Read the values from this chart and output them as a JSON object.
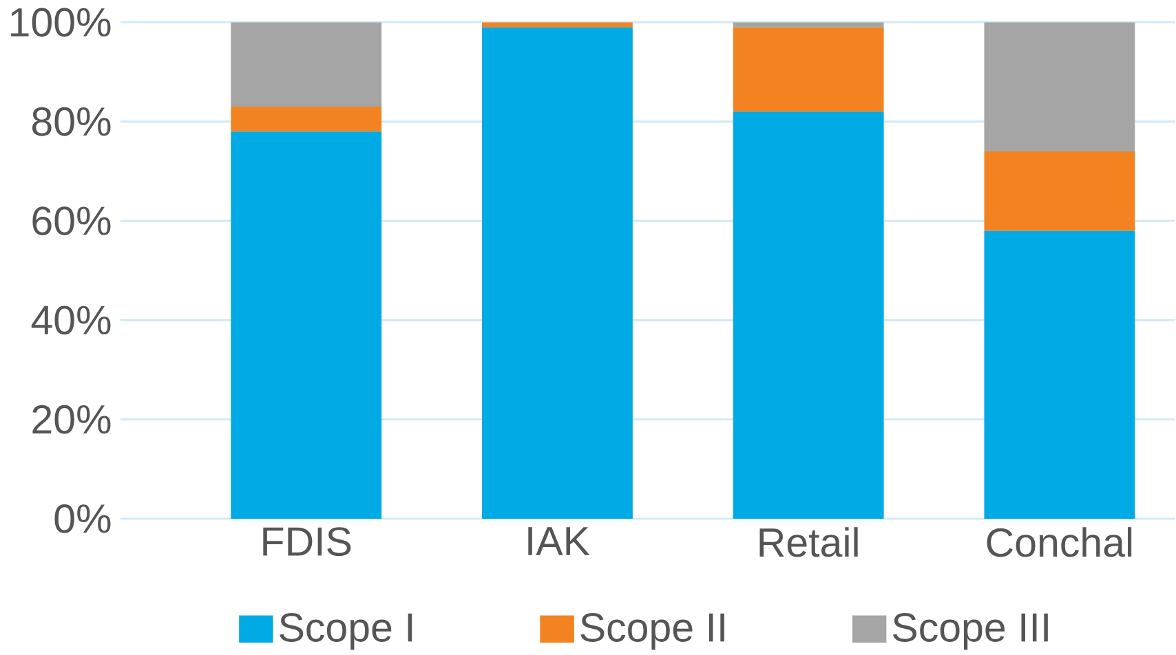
{
  "chart_data": {
    "type": "bar",
    "stacked": true,
    "categories": [
      "FDIS",
      "IAK",
      "Retail",
      "Conchal"
    ],
    "series": [
      {
        "name": "Scope I",
        "color": "#00abe5",
        "values": [
          78,
          99,
          82,
          58
        ]
      },
      {
        "name": "Scope II",
        "color": "#f38321",
        "values": [
          5,
          1,
          17,
          16
        ]
      },
      {
        "name": "Scope III",
        "color": "#a5a5a5",
        "values": [
          17,
          0,
          1,
          26
        ]
      }
    ],
    "ylim": [
      0,
      100
    ],
    "yticks": [
      {
        "value": 0,
        "label": "0%"
      },
      {
        "value": 20,
        "label": "20%"
      },
      {
        "value": 40,
        "label": "40%"
      },
      {
        "value": 60,
        "label": "60%"
      },
      {
        "value": 80,
        "label": "80%"
      },
      {
        "value": 100,
        "label": "100%"
      }
    ],
    "grid": "y",
    "legend": "bottom"
  }
}
